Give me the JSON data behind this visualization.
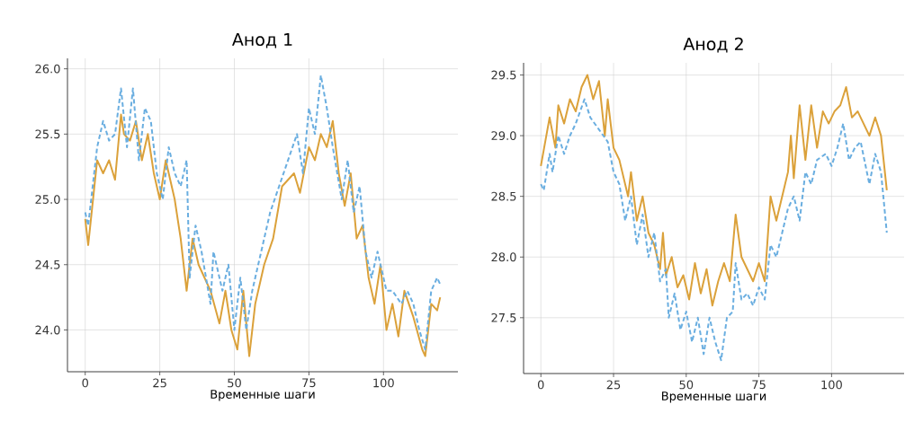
{
  "chart_data": [
    {
      "type": "line",
      "title": "Анод 1",
      "xlabel": "Временные шаги",
      "xlim": [
        -5.95,
        124.95
      ],
      "ylim": [
        23.68,
        26.08
      ],
      "xticks": [
        0,
        25,
        50,
        75,
        100
      ],
      "yticks": [
        {
          "value": 24,
          "label": "24.0"
        },
        {
          "value": 24.5,
          "label": "24.5"
        },
        {
          "value": 25,
          "label": "25.0"
        },
        {
          "value": 25.5,
          "label": "25.5"
        },
        {
          "value": 26,
          "label": "26.0"
        }
      ],
      "grid": true,
      "marker": "none",
      "series": [
        {
          "color": "#dba13a",
          "line_style": "solid",
          "x": [
            0,
            1,
            4,
            6,
            8,
            10,
            12,
            13,
            15,
            17,
            19,
            21,
            23,
            25,
            27,
            30,
            32,
            34,
            36,
            38,
            42,
            45,
            47,
            49,
            51,
            53,
            55,
            57,
            60,
            63,
            66,
            70,
            72,
            75,
            77,
            79,
            81,
            83,
            85,
            87,
            89,
            91,
            93,
            95,
            97,
            99,
            101,
            103,
            105,
            107,
            110,
            113,
            114,
            116,
            118,
            119
          ],
          "values": [
            24.85,
            24.65,
            25.3,
            25.2,
            25.3,
            25.15,
            25.65,
            25.5,
            25.45,
            25.6,
            25.3,
            25.5,
            25.2,
            25.0,
            25.3,
            25.0,
            24.7,
            24.3,
            24.7,
            24.5,
            24.3,
            24.05,
            24.3,
            24.0,
            23.85,
            24.3,
            23.8,
            24.2,
            24.5,
            24.7,
            25.1,
            25.2,
            25.05,
            25.4,
            25.3,
            25.5,
            25.4,
            25.6,
            25.2,
            24.95,
            25.2,
            24.7,
            24.8,
            24.4,
            24.2,
            24.5,
            24.0,
            24.2,
            23.95,
            24.3,
            24.1,
            23.85,
            23.8,
            24.2,
            24.15,
            24.25
          ]
        },
        {
          "color": "#6aaee0",
          "line_style": "dashed",
          "x": [
            0,
            1,
            4,
            6,
            8,
            10,
            12,
            14,
            16,
            18,
            20,
            22,
            24,
            26,
            28,
            30,
            32,
            34,
            35,
            37,
            39,
            42,
            43,
            46,
            48,
            50,
            52,
            54,
            56,
            59,
            62,
            65,
            68,
            71,
            73,
            75,
            77,
            79,
            81,
            83,
            86,
            88,
            90,
            92,
            94,
            96,
            98,
            101,
            103,
            106,
            108,
            110,
            112,
            114,
            116,
            118,
            119
          ],
          "values": [
            24.9,
            24.8,
            25.4,
            25.6,
            25.45,
            25.5,
            25.85,
            25.4,
            25.85,
            25.3,
            25.7,
            25.6,
            25.2,
            25.0,
            25.4,
            25.2,
            25.1,
            25.3,
            24.4,
            24.8,
            24.6,
            24.2,
            24.6,
            24.3,
            24.5,
            24.0,
            24.4,
            24.0,
            24.3,
            24.6,
            24.9,
            25.1,
            25.3,
            25.5,
            25.2,
            25.7,
            25.5,
            25.95,
            25.7,
            25.4,
            25.0,
            25.3,
            24.9,
            25.1,
            24.6,
            24.4,
            24.6,
            24.3,
            24.3,
            24.2,
            24.3,
            24.2,
            24.0,
            23.85,
            24.3,
            24.4,
            24.35
          ]
        }
      ]
    },
    {
      "type": "line",
      "title": "Анод 2",
      "xlabel": "Временные шаги",
      "xlim": [
        -5.95,
        124.95
      ],
      "ylim": [
        27.04,
        29.6
      ],
      "xticks": [
        0,
        25,
        50,
        75,
        100
      ],
      "yticks": [
        {
          "value": 27.5,
          "label": "27.5"
        },
        {
          "value": 28,
          "label": "28.0"
        },
        {
          "value": 28.5,
          "label": "28.5"
        },
        {
          "value": 29,
          "label": "29.0"
        },
        {
          "value": 29.5,
          "label": "29.5"
        }
      ],
      "grid": true,
      "marker": "none",
      "series": [
        {
          "color": "#dba13a",
          "line_style": "solid",
          "x": [
            0,
            3,
            5,
            6,
            8,
            10,
            12,
            14,
            16,
            18,
            20,
            22,
            23,
            25,
            27,
            30,
            31,
            33,
            35,
            37,
            39,
            41,
            42,
            43,
            45,
            47,
            49,
            51,
            53,
            55,
            57,
            59,
            61,
            63,
            65,
            67,
            69,
            71,
            73,
            75,
            77,
            79,
            81,
            83,
            85,
            86,
            87,
            89,
            91,
            93,
            95,
            97,
            99,
            101,
            103,
            105,
            107,
            109,
            111,
            113,
            115,
            117,
            119
          ],
          "values": [
            28.75,
            29.15,
            28.9,
            29.25,
            29.1,
            29.3,
            29.2,
            29.4,
            29.5,
            29.3,
            29.45,
            29.0,
            29.3,
            28.9,
            28.8,
            28.5,
            28.7,
            28.3,
            28.5,
            28.2,
            28.1,
            27.9,
            28.2,
            27.85,
            28.0,
            27.75,
            27.85,
            27.65,
            27.95,
            27.7,
            27.9,
            27.6,
            27.8,
            27.95,
            27.8,
            28.35,
            28.0,
            27.9,
            27.8,
            27.95,
            27.8,
            28.5,
            28.3,
            28.5,
            28.7,
            29.0,
            28.65,
            29.25,
            28.8,
            29.25,
            28.9,
            29.2,
            29.1,
            29.2,
            29.25,
            29.4,
            29.15,
            29.2,
            29.1,
            29.0,
            29.15,
            29.0,
            28.55
          ]
        },
        {
          "color": "#6aaee0",
          "line_style": "dashed",
          "x": [
            0,
            1,
            3,
            4,
            6,
            8,
            10,
            12,
            15,
            17,
            20,
            23,
            25,
            27,
            29,
            31,
            33,
            35,
            37,
            39,
            41,
            43,
            44,
            46,
            48,
            50,
            52,
            54,
            56,
            58,
            60,
            62,
            64,
            66,
            67,
            69,
            71,
            73,
            75,
            77,
            79,
            81,
            83,
            85,
            87,
            89,
            91,
            93,
            95,
            98,
            100,
            102,
            104,
            106,
            108,
            110,
            113,
            115,
            117,
            119
          ],
          "values": [
            28.6,
            28.55,
            28.85,
            28.7,
            29.0,
            28.85,
            29.0,
            29.1,
            29.3,
            29.15,
            29.05,
            28.95,
            28.7,
            28.6,
            28.3,
            28.5,
            28.1,
            28.35,
            28.0,
            28.2,
            27.8,
            27.9,
            27.5,
            27.7,
            27.4,
            27.55,
            27.3,
            27.5,
            27.2,
            27.5,
            27.3,
            27.15,
            27.5,
            27.55,
            27.95,
            27.65,
            27.7,
            27.6,
            27.75,
            27.65,
            28.1,
            28.0,
            28.2,
            28.4,
            28.5,
            28.3,
            28.7,
            28.6,
            28.8,
            28.85,
            28.75,
            28.9,
            29.1,
            28.8,
            28.9,
            28.95,
            28.6,
            28.85,
            28.7,
            28.2
          ]
        }
      ]
    }
  ]
}
